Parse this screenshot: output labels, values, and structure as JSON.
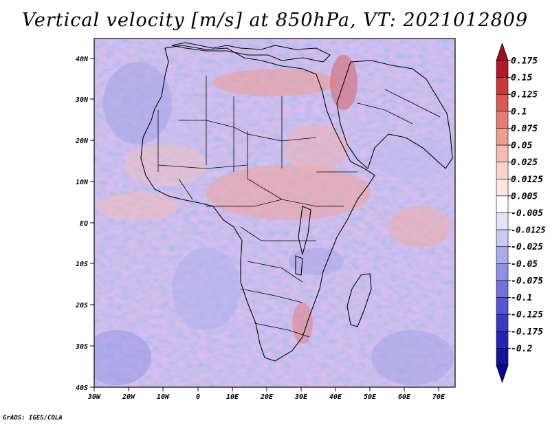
{
  "title": "Vertical velocity [m/s] at 850hPa, VT: 2021012809",
  "credit": "GrADS: IGES/COLA",
  "axes": {
    "lat_ticks": [
      "40N",
      "30N",
      "20N",
      "10N",
      "EQ",
      "10S",
      "20S",
      "30S",
      "40S"
    ],
    "lon_ticks": [
      "30W",
      "20W",
      "10W",
      "0",
      "10E",
      "20E",
      "30E",
      "40E",
      "50E",
      "60E",
      "70E"
    ]
  },
  "colorbar": {
    "labels": [
      "0.175",
      "0.15",
      "0.125",
      "0.1",
      "0.075",
      "0.05",
      "0.025",
      "0.0125",
      "0.005",
      "-0.005",
      "-0.0125",
      "-0.025",
      "-0.05",
      "-0.075",
      "-0.1",
      "-0.125",
      "-0.175",
      "-0.2"
    ],
    "colors": [
      "#b2182b",
      "#c83a3a",
      "#d85a57",
      "#e47c76",
      "#ee9d93",
      "#f5bcb2",
      "#fad3cb",
      "#fde6e1",
      "#ffffff",
      "#e3e3fb",
      "#c9c9f5",
      "#ababee",
      "#8f8fe6",
      "#7272dc",
      "#5656d0",
      "#3b3bc1",
      "#2525ae",
      "#13139a"
    ],
    "upper_triangle_color": "#9e0d23",
    "lower_triangle_color": "#0a0a8c"
  }
}
